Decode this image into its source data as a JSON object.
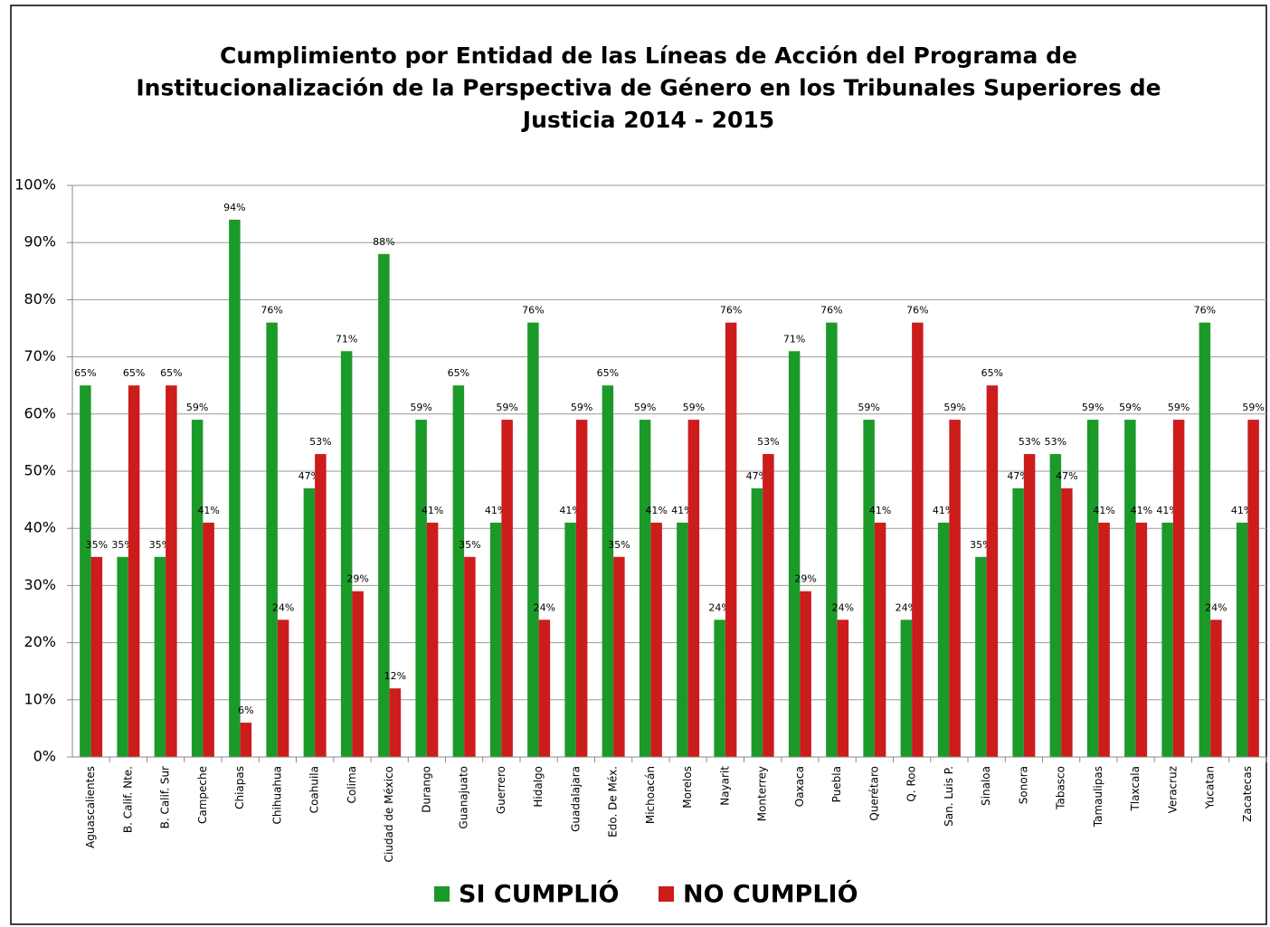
{
  "chart_data": {
    "type": "bar",
    "title": [
      "Cumplimiento por Entidad de las Líneas de Acción del Programa de",
      "Institucionalización de la Perspectiva de Género en los Tribunales Superiores de",
      "Justicia 2014 - 2015"
    ],
    "categories": [
      "Aguascalientes",
      "B. Calif. Nte.",
      "B. Calif. Sur",
      "Campeche",
      "Chiapas",
      "Chihuahua",
      "Coahuila",
      "Colima",
      "Ciudad de México",
      "Durango",
      "Guanajuato",
      "Guerrero",
      "Hidalgo",
      "Guadalajara",
      "Edo. De Méx.",
      "Michoacán",
      "Morelos",
      "Nayarit",
      "Monterrey",
      "Oaxaca",
      "Puebla",
      "Querétaro",
      "Q. Roo",
      "San. Luis P.",
      "Sinaloa",
      "Sonora",
      "Tabasco",
      "Tamaulipas",
      "Tlaxcala",
      "Veracruz",
      "Yucatan",
      "Zacatecas"
    ],
    "series": [
      {
        "name": "SI CUMPLIÓ",
        "color": "#1b9a2a",
        "values": [
          65,
          35,
          35,
          59,
          94,
          76,
          47,
          71,
          88,
          59,
          65,
          41,
          76,
          41,
          65,
          59,
          41,
          24,
          47,
          71,
          76,
          59,
          24,
          41,
          35,
          47,
          53,
          59,
          59,
          41,
          76,
          41
        ],
        "value_labels": [
          "65%",
          "35%",
          "35%",
          "59%",
          "94%",
          "76%",
          "47%",
          "71%",
          "88%",
          "59%",
          "65%",
          "41%",
          "76%",
          "41%",
          "65%",
          "59%",
          "41%",
          "24%",
          "47%",
          "71%",
          "76%",
          "59%",
          "24%",
          "41%",
          "35%",
          "47%",
          "53%",
          "59%",
          "59%",
          "41%",
          "76%",
          "41%"
        ]
      },
      {
        "name": "NO CUMPLIÓ",
        "color": "#cc1c1c",
        "values": [
          35,
          65,
          65,
          41,
          6,
          24,
          53,
          29,
          12,
          41,
          35,
          59,
          24,
          59,
          35,
          41,
          59,
          76,
          53,
          29,
          24,
          41,
          76,
          59,
          65,
          53,
          47,
          41,
          41,
          59,
          24,
          59
        ],
        "value_labels": [
          "35%",
          "65%",
          "65%",
          "41%",
          "6%",
          "24%",
          "53%",
          "29%",
          "12%",
          "41%",
          "35%",
          "59%",
          "24%",
          "59%",
          "35%",
          "41%",
          "59%",
          "76%",
          "53%",
          "29%",
          "24%",
          "41%",
          "76%",
          "59%",
          "65%",
          "53%",
          "47%",
          "41%",
          "41%",
          "59%",
          "24%",
          "59%"
        ]
      }
    ],
    "ylim": [
      0,
      100
    ],
    "yticks": [
      {
        "value": 0,
        "label": "0%"
      },
      {
        "value": 10,
        "label": "10%"
      },
      {
        "value": 20,
        "label": "20%"
      },
      {
        "value": 30,
        "label": "30%"
      },
      {
        "value": 40,
        "label": "40%"
      },
      {
        "value": 50,
        "label": "50%"
      },
      {
        "value": 60,
        "label": "60%"
      },
      {
        "value": 70,
        "label": "70%"
      },
      {
        "value": 80,
        "label": "80%"
      },
      {
        "value": 90,
        "label": "90%"
      },
      {
        "value": 100,
        "label": "100%"
      }
    ],
    "grid": true,
    "legend": "bottom"
  }
}
